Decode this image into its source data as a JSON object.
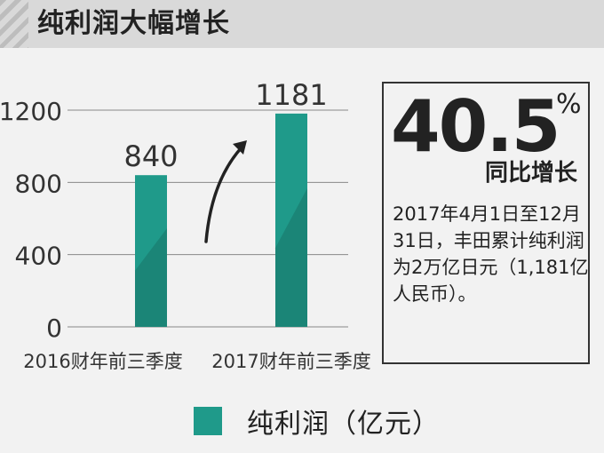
{
  "header": {
    "title": "纯利润大幅增长"
  },
  "chart_data": {
    "type": "bar",
    "categories": [
      "2016财年前三季度",
      "2017财年前三季度"
    ],
    "series": [
      {
        "name": "纯利润（亿元）",
        "values": [
          840,
          1181
        ]
      }
    ],
    "value_labels": [
      "840",
      "1181"
    ],
    "ylim": [
      0,
      1200
    ],
    "yticks": [
      0,
      400,
      800,
      1200
    ],
    "ytick_labels": [
      "0",
      "400",
      "800",
      "1200"
    ],
    "grid": true,
    "legend_position": "bottom",
    "bar_color": "#1f9a8a",
    "bar_color_dark": "#1b8577"
  },
  "stat": {
    "value": "40.5",
    "unit": "%",
    "subtitle": "同比增长",
    "description": "2017年4月1日至12月31日，丰田累计纯利润为2万亿日元（1,181亿人民币）。"
  },
  "legend": {
    "label": "纯利润（亿元）",
    "icon": "square-swatch"
  }
}
